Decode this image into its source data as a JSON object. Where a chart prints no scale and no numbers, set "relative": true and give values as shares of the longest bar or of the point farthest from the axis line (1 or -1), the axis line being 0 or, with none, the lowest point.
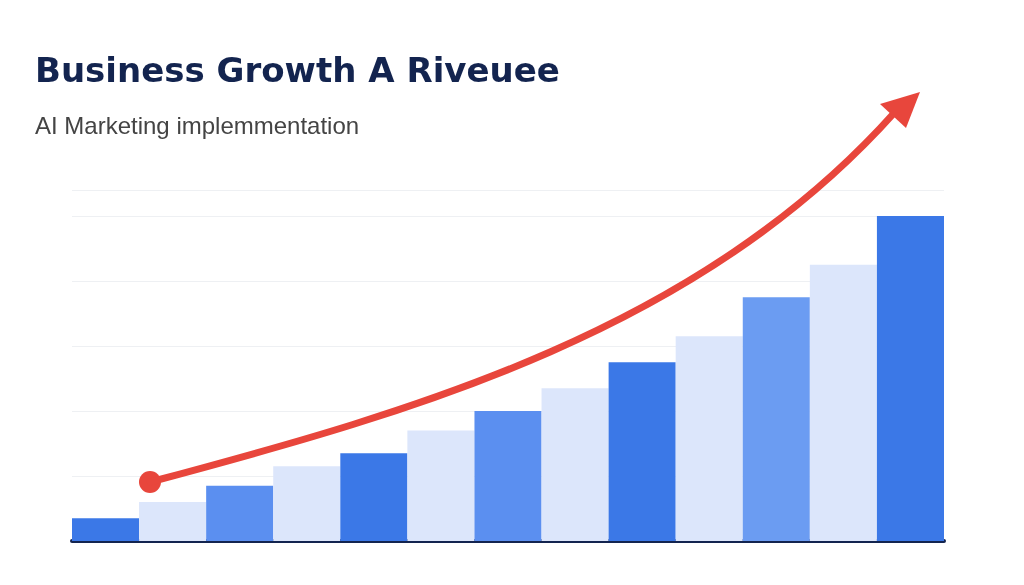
{
  "chart_data": {
    "type": "bar",
    "title": "Business Growth A Riveuee",
    "subtitle": "AI Marketing implemmentation",
    "relative": true,
    "grid": "y",
    "categories": [
      null,
      null,
      null,
      null,
      null,
      null,
      null,
      null,
      null,
      null,
      null,
      null,
      null
    ],
    "values": [
      0.07,
      0.12,
      0.17,
      0.23,
      0.27,
      0.34,
      0.4,
      0.47,
      0.55,
      0.63,
      0.75,
      0.85,
      1
    ],
    "colors": [
      "#3b78e7",
      "#dce6fb",
      "#5b8ff0",
      "#dce6fb",
      "#3b78e7",
      "#dce6fb",
      "#5b8ff0",
      "#dce6fb",
      "#3b78e7",
      "#dce6fb",
      "#6b9cf2",
      "#dce6fb",
      "#3b78e7"
    ]
  }
}
